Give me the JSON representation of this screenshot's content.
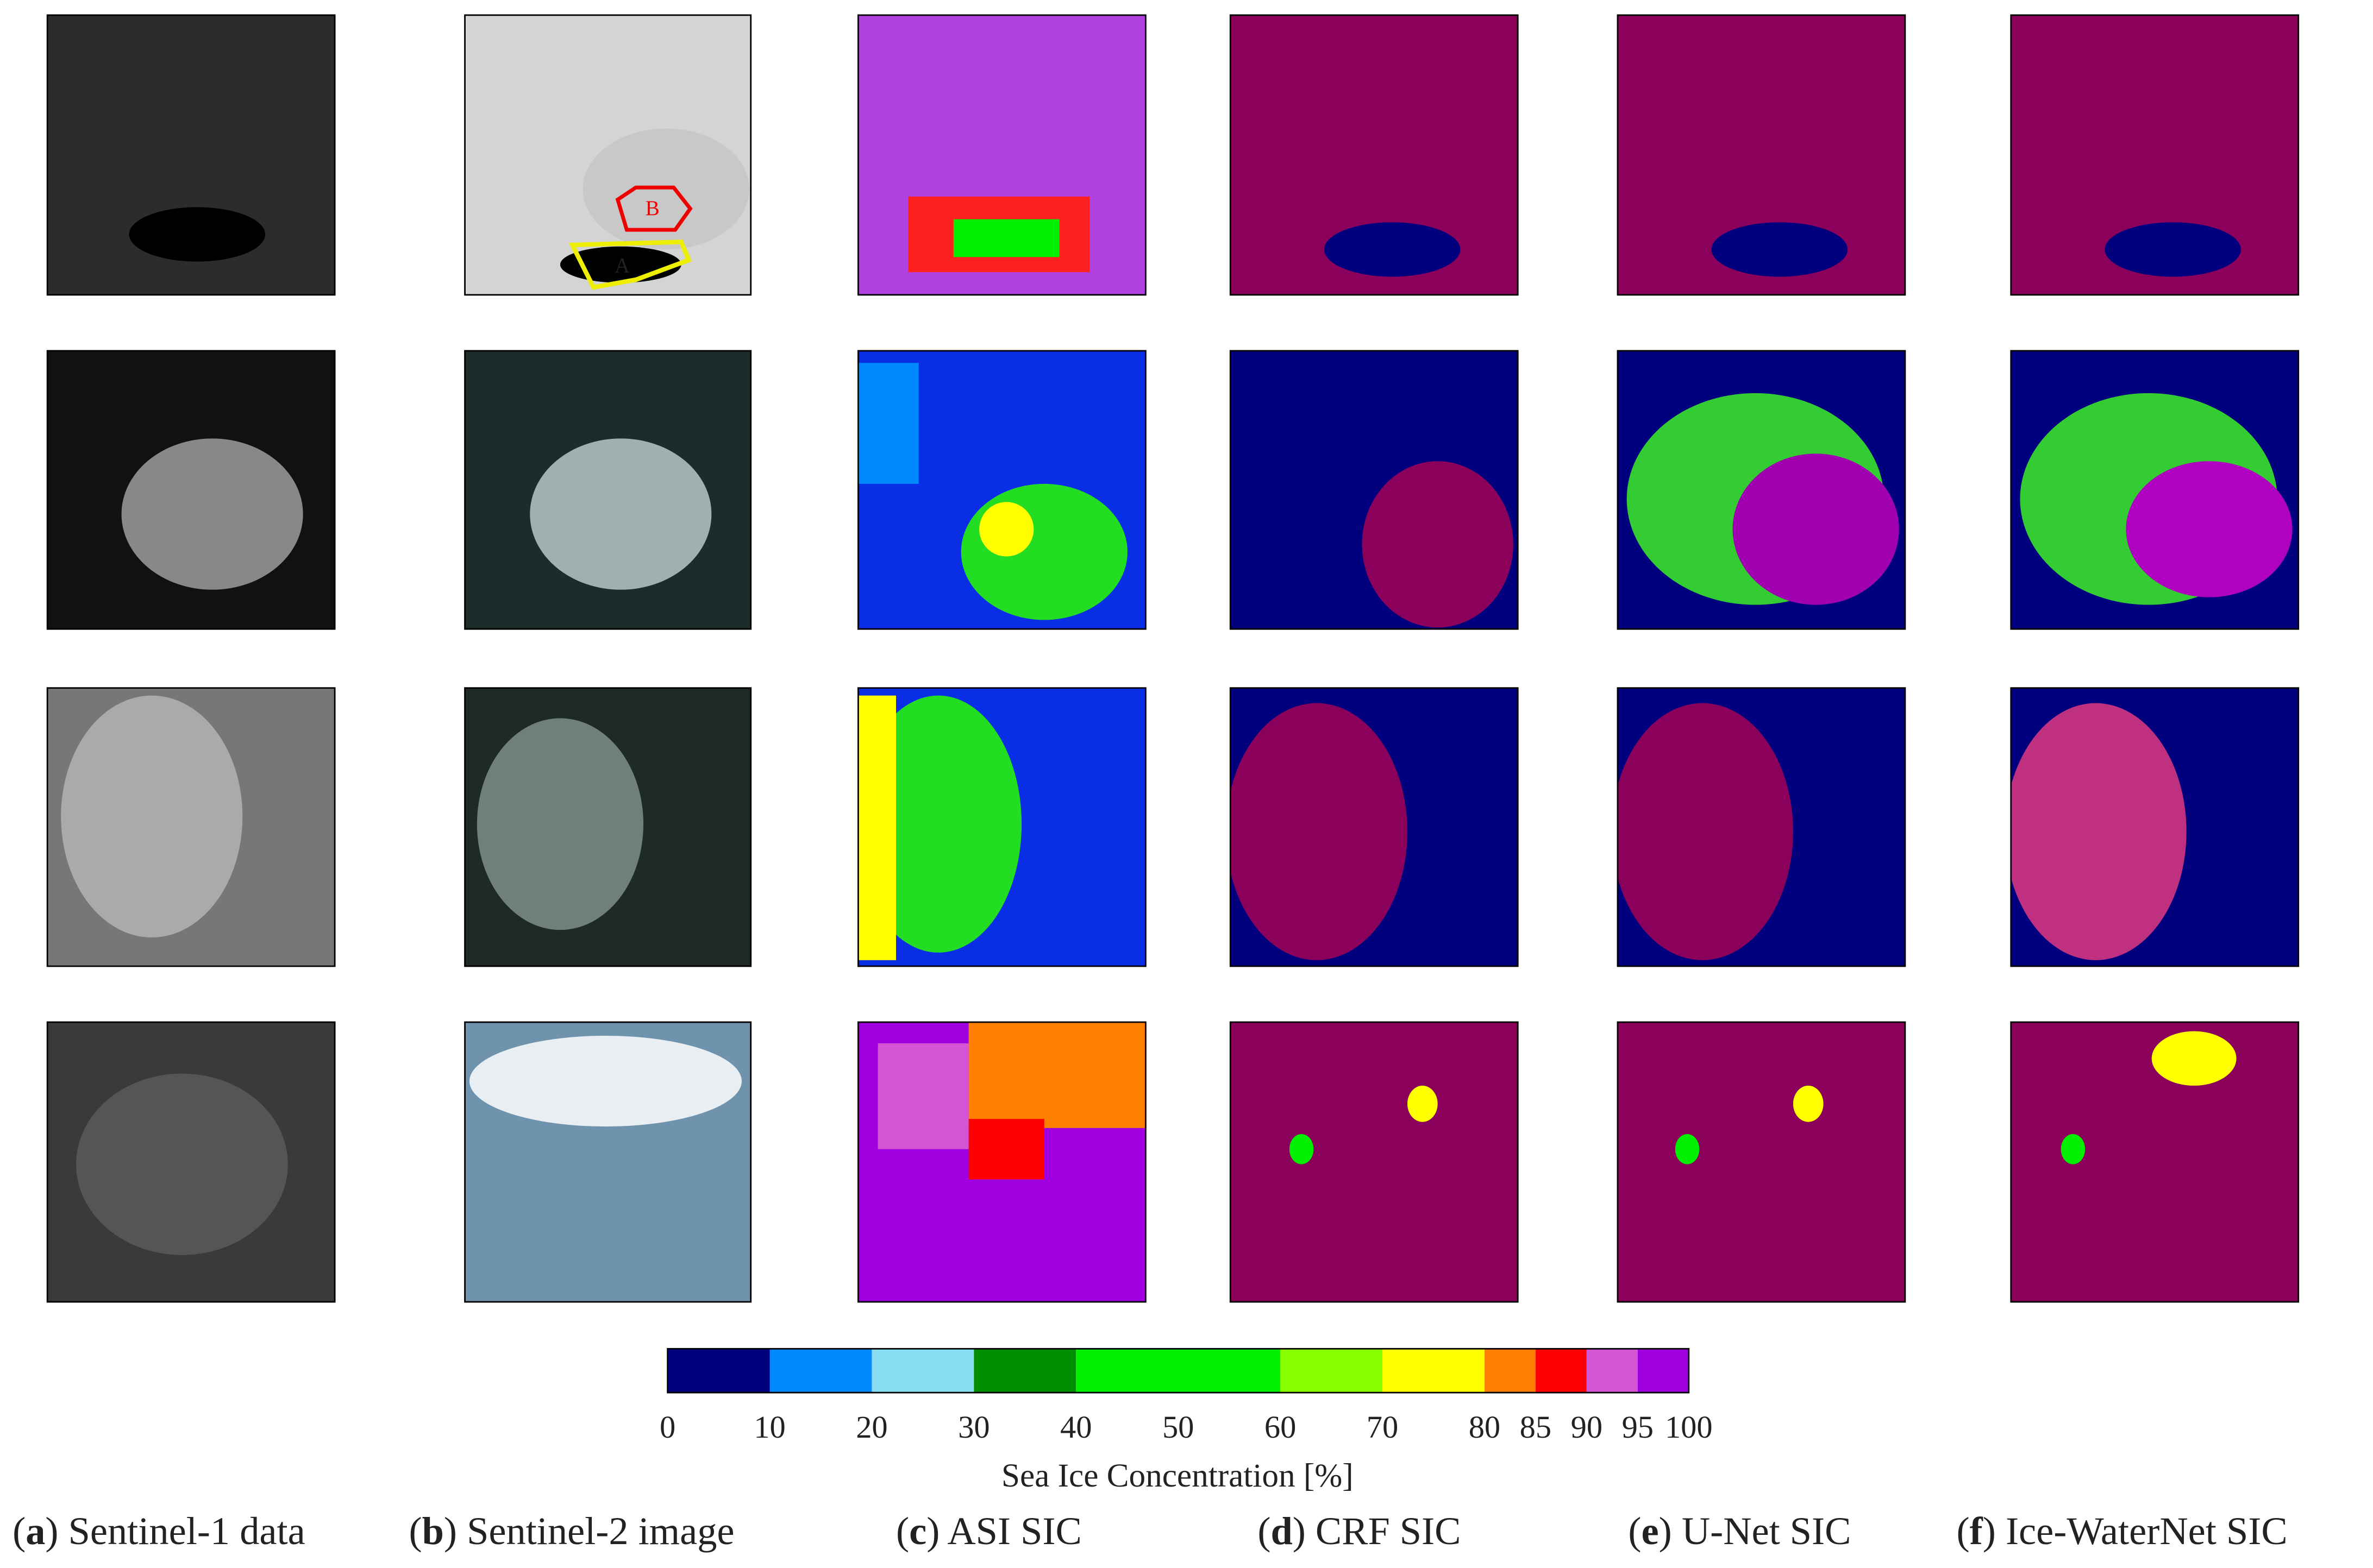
{
  "figure": {
    "annotations": {
      "a_label": "A",
      "b_label": "B"
    },
    "colorbar": {
      "label": "Sea Ice Concentration [%]",
      "xlim": [
        0,
        100
      ],
      "bounds": [
        0,
        10,
        20,
        30,
        40,
        60,
        70,
        80,
        85,
        90,
        95,
        100
      ],
      "colors": [
        "#00007f",
        "#0088ff",
        "#88dcef",
        "#008f00",
        "#00ee00",
        "#88ff00",
        "#ffff00",
        "#ff8000",
        "#ff0000",
        "#d455d4",
        "#a000e0"
      ],
      "ticks": [
        0,
        10,
        20,
        30,
        40,
        50,
        60,
        70,
        80,
        85,
        90,
        95,
        100
      ]
    },
    "captions": [
      {
        "open": "(",
        "letter": "a",
        "text": ") Sentinel-1 data"
      },
      {
        "open": "(",
        "letter": "b",
        "text": ") Sentinel-2 image"
      },
      {
        "open": "(",
        "letter": "c",
        "text": ") ASI SIC"
      },
      {
        "open": "(",
        "letter": "d",
        "text": ") CRF SIC"
      },
      {
        "open": "(",
        "letter": "e",
        "text": ") U-Net SIC"
      },
      {
        "open": "(",
        "letter": "f",
        "text": ") Ice-WaterNet SIC"
      }
    ]
  }
}
